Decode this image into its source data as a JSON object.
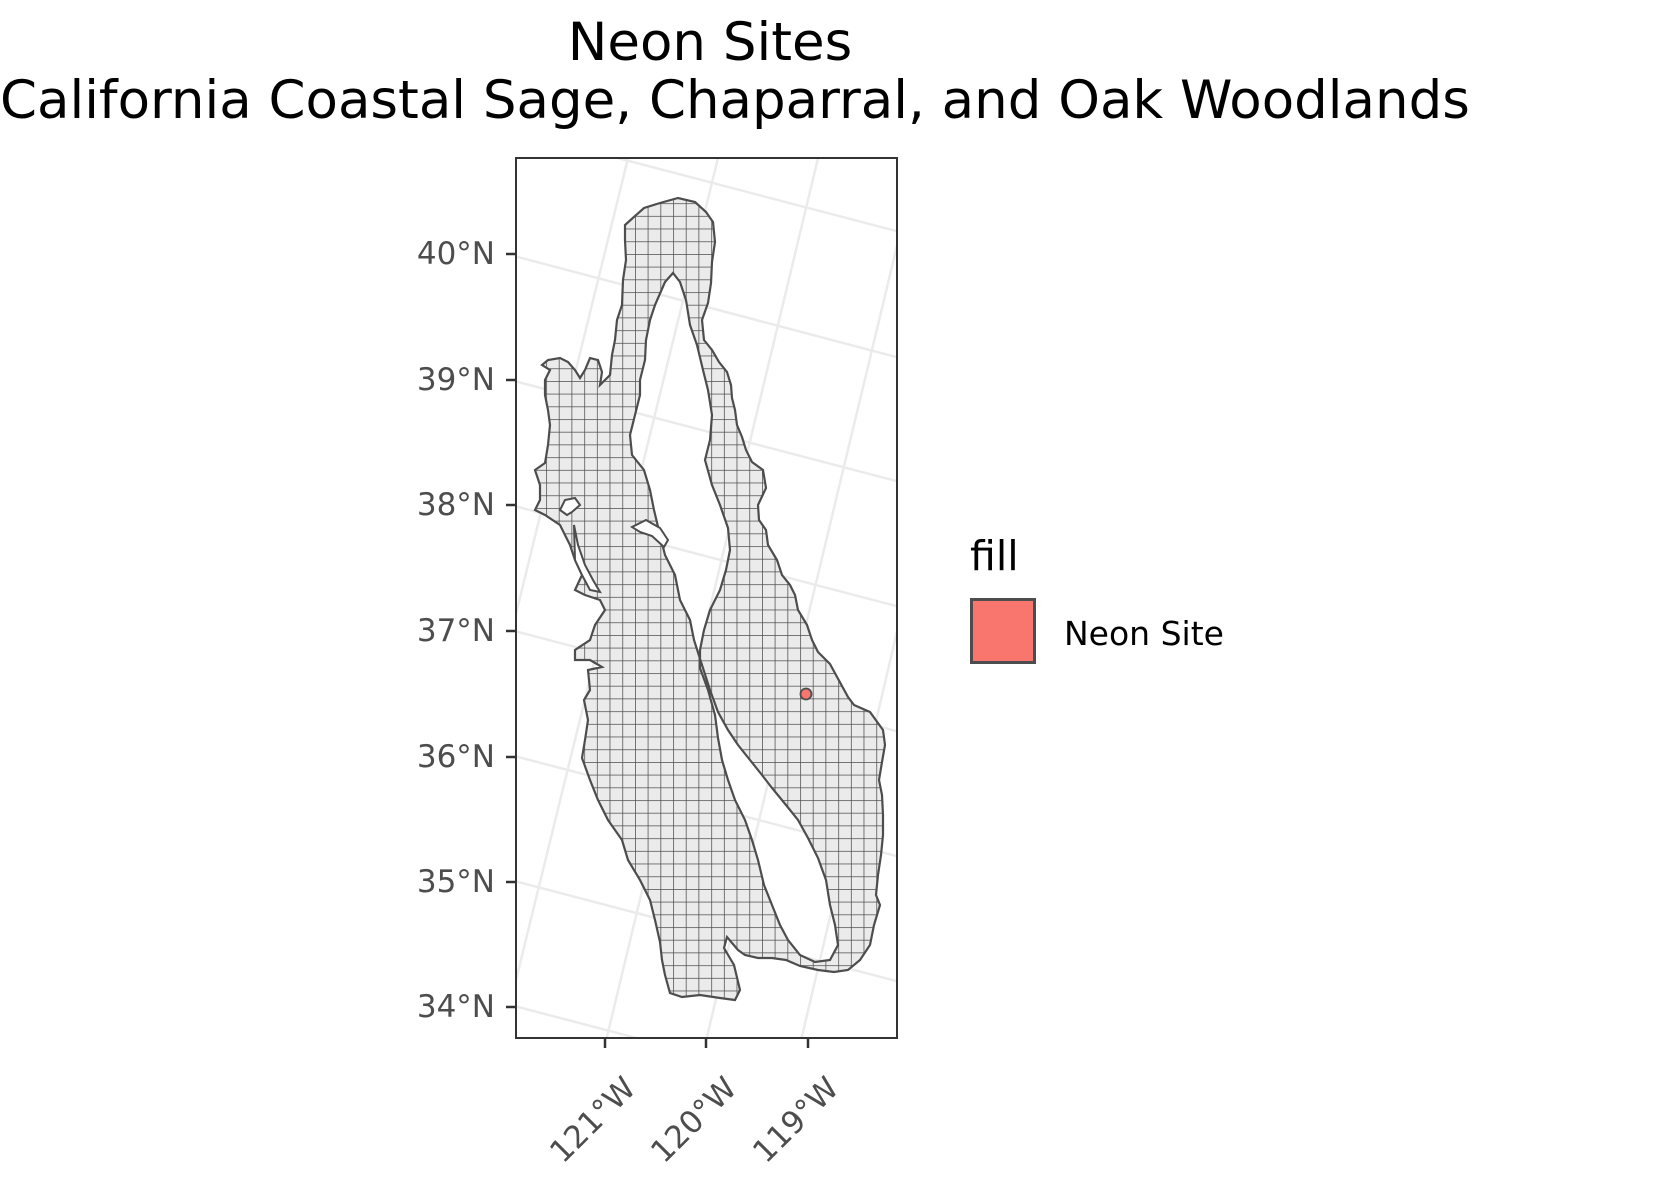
{
  "title": {
    "line1": "Neon Sites",
    "line2": "California Coastal Sage, Chaparral, and Oak Woodlands"
  },
  "map": {
    "projection": "conic (rotated graticule)",
    "region": "California Coastal Sage, Chaparral, and Oak Woodlands",
    "region_fill": "#ebebeb",
    "region_outline": "#4d4d4d",
    "grid_cells": "square grid overlay",
    "graticule_color": "#ebebeb",
    "panel_border": "#333333",
    "latitude_labels": [
      "40°N",
      "39°N",
      "38°N",
      "37°N",
      "36°N",
      "35°N",
      "34°N"
    ],
    "longitude_labels": [
      "121°W",
      "120°W",
      "119°W"
    ],
    "sites": [
      {
        "label": "Neon Site",
        "lon": -119.0,
        "lat": 36.5
      }
    ]
  },
  "legend": {
    "title": "fill",
    "items": [
      {
        "label": "Neon Site",
        "color": "#f8766d"
      }
    ]
  }
}
